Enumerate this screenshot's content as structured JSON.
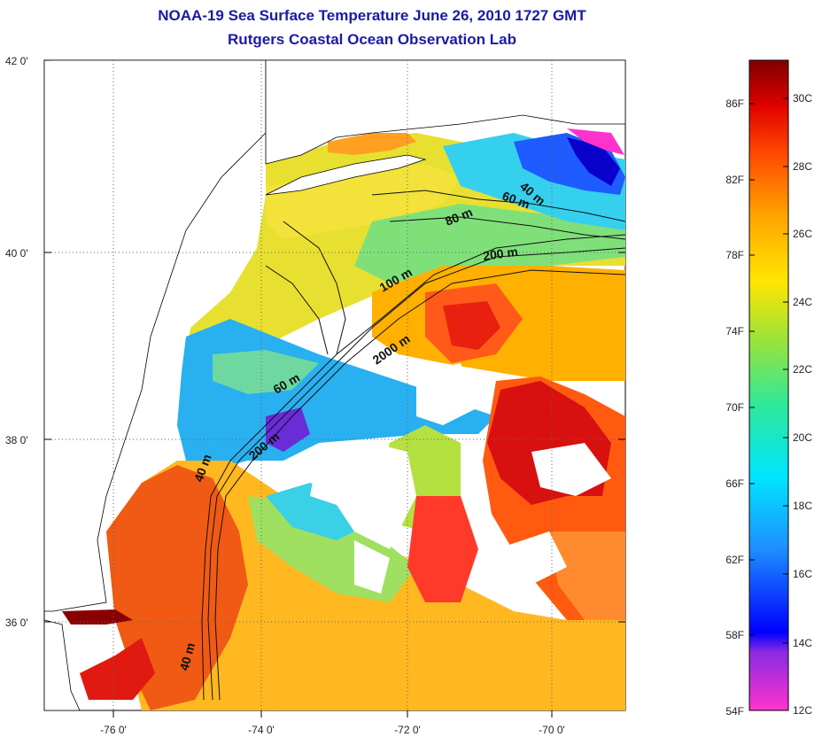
{
  "title": "NOAA-19 Sea Surface Temperature June 26, 2010 1727 GMT",
  "subtitle": "Rutgers Coastal Ocean Observation Lab",
  "lat_ticks": [
    "42 0'",
    "40 0'",
    "38 0'",
    "36 0'"
  ],
  "lon_ticks": [
    "-76 0'",
    "-74 0'",
    "-72 0'",
    "-70 0'"
  ],
  "isobaths": [
    {
      "label": "40 m"
    },
    {
      "label": "60 m"
    },
    {
      "label": "80 m"
    },
    {
      "label": "200 m"
    },
    {
      "label": "100 m"
    },
    {
      "label": "2000 m"
    },
    {
      "label": "60 m"
    },
    {
      "label": "200 m"
    },
    {
      "label": "40 m"
    },
    {
      "label": "40 m"
    }
  ],
  "colorbar": {
    "fahrenheit": [
      "86F",
      "82F",
      "78F",
      "74F",
      "70F",
      "66F",
      "62F",
      "58F",
      "54F"
    ],
    "celsius": [
      "30C",
      "28C",
      "26C",
      "24C",
      "22C",
      "20C",
      "18C",
      "16C",
      "14C",
      "12C"
    ],
    "colors": [
      "#ff33cc",
      "#8a2be2",
      "#0000ff",
      "#1e90ff",
      "#00e5ff",
      "#2ee89a",
      "#9be33a",
      "#ffe600",
      "#ffa500",
      "#ff4500",
      "#e00000",
      "#800000"
    ]
  }
}
